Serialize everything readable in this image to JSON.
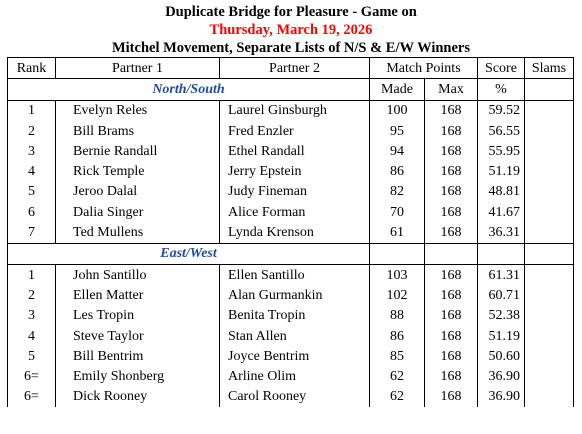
{
  "header": {
    "title": "Duplicate Bridge for Pleasure - Game on",
    "date": "Thursday, March 19, 2026",
    "subtitle": "Mitchel Movement, Separate Lists of N/S & E/W Winners"
  },
  "columns": {
    "rank": "Rank",
    "partner1": "Partner 1",
    "partner2": "Partner 2",
    "match_points": "Match Points",
    "score": "Score",
    "slams": "Slams",
    "made": "Made",
    "max": "Max",
    "pct": "%"
  },
  "north_south": {
    "label": "North/South",
    "rows": [
      {
        "rank": "1",
        "p1": "Evelyn Reles",
        "p2": "Laurel Ginsburgh",
        "made": "100",
        "max": "168",
        "score": "59.52"
      },
      {
        "rank": "2",
        "p1": "Bill Brams",
        "p2": "Fred Enzler",
        "made": "95",
        "max": "168",
        "score": "56.55"
      },
      {
        "rank": "3",
        "p1": "Bernie Randall",
        "p2": "Ethel Randall",
        "made": "94",
        "max": "168",
        "score": "55.95"
      },
      {
        "rank": "4",
        "p1": "Rick Temple",
        "p2": "Jerry Epstein",
        "made": "86",
        "max": "168",
        "score": "51.19"
      },
      {
        "rank": "5",
        "p1": "Jeroo Dalal",
        "p2": "Judy Fineman",
        "made": "82",
        "max": "168",
        "score": "48.81"
      },
      {
        "rank": "6",
        "p1": "Dalia Singer",
        "p2": "Alice Forman",
        "made": "70",
        "max": "168",
        "score": "41.67"
      },
      {
        "rank": "7",
        "p1": "Ted Mullens",
        "p2": "Lynda Krenson",
        "made": "61",
        "max": "168",
        "score": "36.31"
      }
    ]
  },
  "east_west": {
    "label": "East/West",
    "rows": [
      {
        "rank": "1",
        "p1": "John Santillo",
        "p2": "Ellen Santillo",
        "made": "103",
        "max": "168",
        "score": "61.31"
      },
      {
        "rank": "2",
        "p1": "Ellen Matter",
        "p2": "Alan Gurmankin",
        "made": "102",
        "max": "168",
        "score": "60.71"
      },
      {
        "rank": "3",
        "p1": "Les Tropin",
        "p2": "Benita Tropin",
        "made": "88",
        "max": "168",
        "score": "52.38"
      },
      {
        "rank": "4",
        "p1": "Steve Taylor",
        "p2": "Stan Allen",
        "made": "86",
        "max": "168",
        "score": "51.19"
      },
      {
        "rank": "5",
        "p1": "Bill Bentrim",
        "p2": "Joyce Bentrim",
        "made": "85",
        "max": "168",
        "score": "50.60"
      },
      {
        "rank": "6=",
        "p1": "Emily Shonberg",
        "p2": "Arline Olim",
        "made": "62",
        "max": "168",
        "score": "36.90"
      },
      {
        "rank": "6=",
        "p1": "Dick Rooney",
        "p2": "Carol Rooney",
        "made": "62",
        "max": "168",
        "score": "36.90"
      }
    ]
  }
}
